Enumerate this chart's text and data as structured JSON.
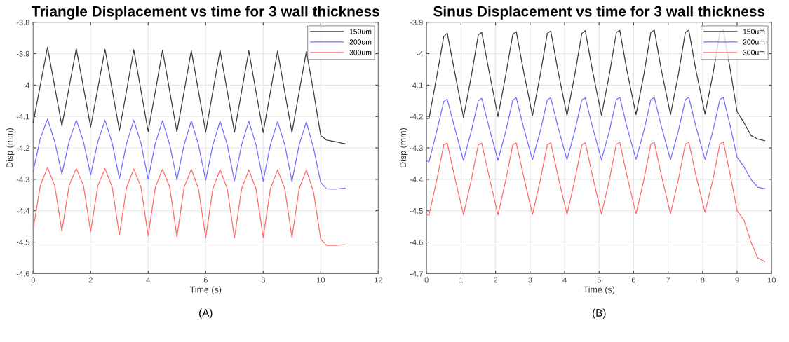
{
  "chart_data": [
    {
      "type": "line",
      "title": "Triangle Displacement vs time for 3 wall thickness",
      "xlabel": "Time (s)",
      "ylabel": "Disp (mm)",
      "annotations": [
        "(A)"
      ],
      "x": [
        0,
        0.25,
        0.5,
        0.75,
        1,
        1.25,
        1.5,
        1.75,
        2,
        2.25,
        2.5,
        2.75,
        3,
        3.25,
        3.5,
        3.75,
        4,
        4.25,
        4.5,
        4.75,
        5,
        5.25,
        5.5,
        5.75,
        6,
        6.25,
        6.5,
        6.75,
        7,
        7.25,
        7.5,
        7.75,
        8,
        8.25,
        8.5,
        8.75,
        9,
        9.25,
        9.5,
        9.75,
        10,
        10.2,
        10.5,
        10.85
      ],
      "series": [
        {
          "name": "150um",
          "color": "#3c3c3c",
          "values": [
            -4.12,
            -4.0,
            -3.88,
            -4.005,
            -4.13,
            -4.007,
            -3.884,
            -4.008,
            -4.133,
            -4.01,
            -3.886,
            -4.015,
            -4.145,
            -4.017,
            -3.888,
            -4.018,
            -4.148,
            -4.02,
            -3.889,
            -4.02,
            -4.149,
            -4.02,
            -3.89,
            -4.02,
            -4.15,
            -4.02,
            -3.89,
            -4.02,
            -4.15,
            -4.02,
            -3.891,
            -4.021,
            -4.151,
            -4.022,
            -3.892,
            -4.022,
            -4.151,
            -4.022,
            -3.893,
            -4.02,
            -4.16,
            -4.175,
            -4.18,
            -4.187
          ]
        },
        {
          "name": "200um",
          "color": "#7070ff",
          "values": [
            -4.275,
            -4.17,
            -4.108,
            -4.18,
            -4.283,
            -4.18,
            -4.111,
            -4.18,
            -4.286,
            -4.18,
            -4.112,
            -4.185,
            -4.298,
            -4.185,
            -4.112,
            -4.185,
            -4.3,
            -4.185,
            -4.113,
            -4.19,
            -4.301,
            -4.19,
            -4.114,
            -4.19,
            -4.303,
            -4.19,
            -4.115,
            -4.19,
            -4.305,
            -4.19,
            -4.115,
            -4.19,
            -4.306,
            -4.19,
            -4.116,
            -4.19,
            -4.307,
            -4.19,
            -4.117,
            -4.2,
            -4.31,
            -4.33,
            -4.331,
            -4.328
          ]
        },
        {
          "name": "300um",
          "color": "#ff6b6b",
          "values": [
            -4.46,
            -4.32,
            -4.262,
            -4.32,
            -4.465,
            -4.32,
            -4.265,
            -4.32,
            -4.467,
            -4.32,
            -4.266,
            -4.325,
            -4.478,
            -4.325,
            -4.267,
            -4.325,
            -4.48,
            -4.325,
            -4.268,
            -4.325,
            -4.483,
            -4.325,
            -4.268,
            -4.33,
            -4.486,
            -4.33,
            -4.269,
            -4.33,
            -4.487,
            -4.33,
            -4.27,
            -4.33,
            -4.485,
            -4.33,
            -4.27,
            -4.33,
            -4.485,
            -4.33,
            -4.27,
            -4.34,
            -4.49,
            -4.51,
            -4.51,
            -4.508
          ]
        }
      ],
      "xlim": [
        0,
        12
      ],
      "xticks": [
        0,
        2,
        4,
        6,
        8,
        10,
        12
      ],
      "ylim": [
        -4.6,
        -3.8
      ],
      "yticks": [
        -4.6,
        -4.5,
        -4.4,
        -4.3,
        -4.2,
        -4.1,
        -4,
        -3.9,
        -3.8
      ],
      "grid": true,
      "legend": "top right"
    },
    {
      "type": "line",
      "title": "Sinus Displacement vs time for 3 wall thickness",
      "xlabel": "Time (s)",
      "ylabel": "Disp (mm)",
      "annotations": [
        "(B)"
      ],
      "x": [
        0,
        0.07,
        0.3,
        0.5,
        0.6,
        0.8,
        1.07,
        1.3,
        1.5,
        1.6,
        1.8,
        2.07,
        2.3,
        2.5,
        2.6,
        2.8,
        3.07,
        3.3,
        3.5,
        3.6,
        3.8,
        4.07,
        4.3,
        4.5,
        4.6,
        4.8,
        5.07,
        5.3,
        5.5,
        5.6,
        5.8,
        6.07,
        6.3,
        6.5,
        6.6,
        6.8,
        7.07,
        7.3,
        7.5,
        7.6,
        7.8,
        8.07,
        8.3,
        8.5,
        8.6,
        8.8,
        9.0,
        9.2,
        9.4,
        9.6,
        9.8
      ],
      "series": [
        {
          "name": "150um",
          "color": "#3c3c3c",
          "values": [
            -4.205,
            -4.207,
            -4.07,
            -3.945,
            -3.935,
            -4.05,
            -4.203,
            -4.07,
            -3.94,
            -3.932,
            -4.05,
            -4.2,
            -4.065,
            -3.938,
            -3.93,
            -4.05,
            -4.197,
            -4.065,
            -3.935,
            -3.928,
            -4.05,
            -4.197,
            -4.065,
            -3.935,
            -3.927,
            -4.05,
            -4.196,
            -4.065,
            -3.933,
            -3.926,
            -4.05,
            -4.194,
            -4.065,
            -3.932,
            -3.925,
            -4.05,
            -4.194,
            -4.065,
            -3.932,
            -3.925,
            -4.05,
            -4.192,
            -4.065,
            -3.932,
            -3.925,
            -4.05,
            -4.185,
            -4.22,
            -4.26,
            -4.272,
            -4.277
          ]
        },
        {
          "name": "200um",
          "color": "#7070ff",
          "values": [
            -4.34,
            -4.345,
            -4.245,
            -4.152,
            -4.145,
            -4.23,
            -4.34,
            -4.245,
            -4.15,
            -4.142,
            -4.23,
            -4.34,
            -4.245,
            -4.148,
            -4.14,
            -4.23,
            -4.338,
            -4.245,
            -4.147,
            -4.14,
            -4.23,
            -4.338,
            -4.245,
            -4.147,
            -4.14,
            -4.23,
            -4.338,
            -4.245,
            -4.146,
            -4.139,
            -4.23,
            -4.337,
            -4.245,
            -4.146,
            -4.139,
            -4.23,
            -4.338,
            -4.245,
            -4.146,
            -4.139,
            -4.23,
            -4.337,
            -4.245,
            -4.146,
            -4.139,
            -4.23,
            -4.33,
            -4.36,
            -4.4,
            -4.425,
            -4.43
          ]
        },
        {
          "name": "300um",
          "color": "#ff6b6b",
          "values": [
            -4.51,
            -4.515,
            -4.4,
            -4.29,
            -4.285,
            -4.385,
            -4.513,
            -4.4,
            -4.29,
            -4.285,
            -4.385,
            -4.513,
            -4.4,
            -4.29,
            -4.284,
            -4.385,
            -4.512,
            -4.4,
            -4.29,
            -4.284,
            -4.385,
            -4.512,
            -4.4,
            -4.29,
            -4.283,
            -4.385,
            -4.511,
            -4.4,
            -4.288,
            -4.282,
            -4.385,
            -4.51,
            -4.4,
            -4.288,
            -4.282,
            -4.385,
            -4.51,
            -4.4,
            -4.288,
            -4.282,
            -4.385,
            -4.505,
            -4.4,
            -4.287,
            -4.281,
            -4.385,
            -4.5,
            -4.53,
            -4.6,
            -4.65,
            -4.662
          ]
        }
      ],
      "xlim": [
        0,
        10
      ],
      "xticks": [
        0,
        1,
        2,
        3,
        4,
        5,
        6,
        7,
        8,
        9,
        10
      ],
      "ylim": [
        -4.7,
        -3.9
      ],
      "yticks": [
        -4.7,
        -4.6,
        -4.5,
        -4.4,
        -4.3,
        -4.2,
        -4.1,
        -4,
        -3.9
      ],
      "grid": true,
      "legend": "top right"
    }
  ]
}
